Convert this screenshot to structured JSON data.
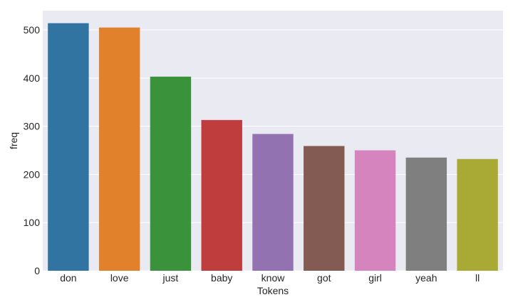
{
  "chart_data": {
    "type": "bar",
    "title": "",
    "xlabel": "Tokens",
    "ylabel": "freq",
    "categories": [
      "don",
      "love",
      "just",
      "baby",
      "know",
      "got",
      "girl",
      "yeah",
      "ll"
    ],
    "values": [
      514,
      505,
      403,
      313,
      284,
      259,
      250,
      235,
      232
    ],
    "ylim": [
      0,
      540
    ],
    "yticks": [
      0,
      100,
      200,
      300,
      400,
      500
    ],
    "grid": true,
    "colors": [
      "#3274a1",
      "#e1812c",
      "#3a923a",
      "#c03d3e",
      "#9372b2",
      "#845b53",
      "#d684bd",
      "#7f7f7f",
      "#a9aa35"
    ],
    "background": "#eaeaf2",
    "gridColor": "#ffffff"
  }
}
